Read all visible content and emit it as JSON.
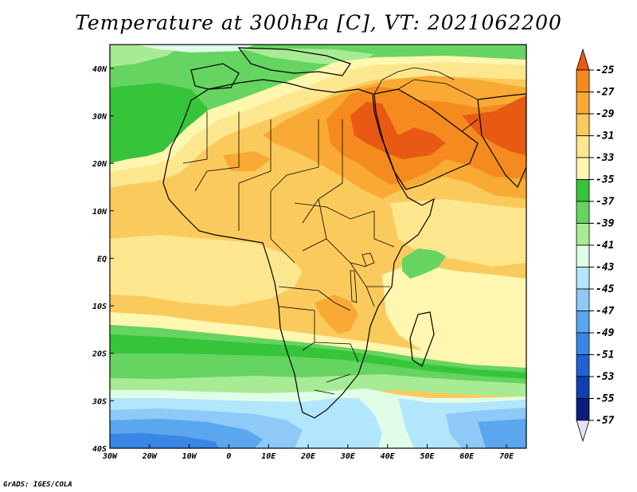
{
  "title": "Temperature at 300hPa [C], VT: 2021062200",
  "credit": "GrADS: IGES/COLA",
  "map": {
    "lon_range": [
      -30,
      75
    ],
    "lat_range": [
      -40,
      45
    ],
    "lon_ticks": [
      {
        "value": -30,
        "label": "30W"
      },
      {
        "value": -20,
        "label": "20W"
      },
      {
        "value": -10,
        "label": "10W"
      },
      {
        "value": 0,
        "label": "0"
      },
      {
        "value": 10,
        "label": "10E"
      },
      {
        "value": 20,
        "label": "20E"
      },
      {
        "value": 30,
        "label": "30E"
      },
      {
        "value": 40,
        "label": "40E"
      },
      {
        "value": 50,
        "label": "50E"
      },
      {
        "value": 60,
        "label": "60E"
      },
      {
        "value": 70,
        "label": "70E"
      }
    ],
    "lat_ticks": [
      {
        "value": 40,
        "label": "40N"
      },
      {
        "value": 30,
        "label": "30N"
      },
      {
        "value": 20,
        "label": "20N"
      },
      {
        "value": 10,
        "label": "10N"
      },
      {
        "value": 0,
        "label": "EQ"
      },
      {
        "value": -10,
        "label": "10S"
      },
      {
        "value": -20,
        "label": "20S"
      },
      {
        "value": -30,
        "label": "30S"
      },
      {
        "value": -40,
        "label": "40S"
      }
    ]
  },
  "colorbar": {
    "levels": [
      "-25",
      "-27",
      "-29",
      "-31",
      "-33",
      "-35",
      "-37",
      "-39",
      "-41",
      "-43",
      "-45",
      "-47",
      "-49",
      "-51",
      "-53",
      "-55",
      "-57"
    ],
    "colors": [
      "#e85a14",
      "#f58b1e",
      "#f9aa34",
      "#fbca5c",
      "#fde78e",
      "#fff6b0",
      "#36c53a",
      "#66d460",
      "#a7ec94",
      "#e0fde8",
      "#b2e6fc",
      "#8ec9f8",
      "#5aa6ef",
      "#3a86e6",
      "#1f62d4",
      "#1040b0",
      "#0c1c7c",
      "#e6e2f6"
    ]
  }
}
